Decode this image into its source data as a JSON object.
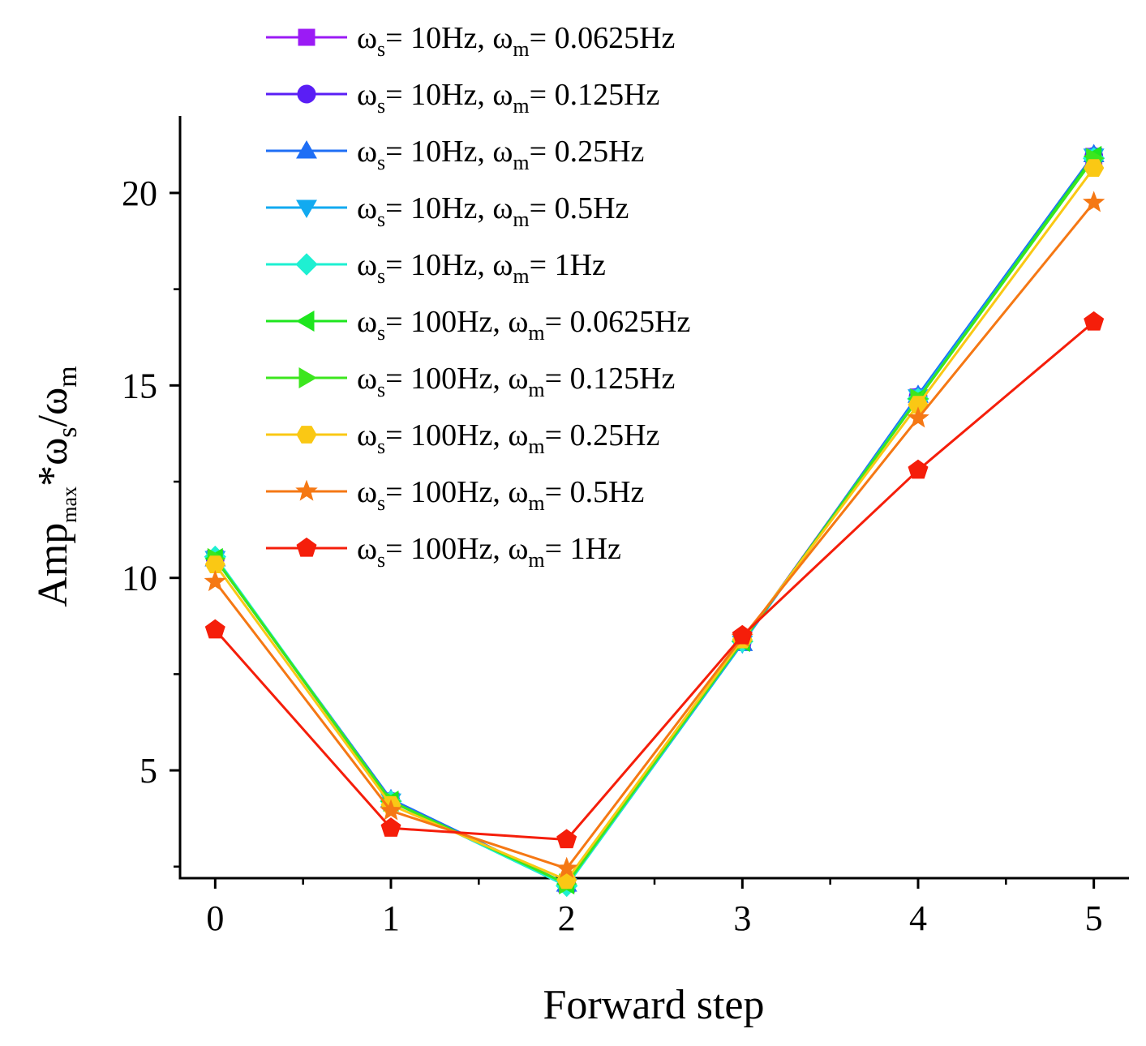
{
  "chart_data": {
    "type": "line",
    "xlabel": "Forward step",
    "ylabel": {
      "base": "Amp",
      "sub1": "max",
      "mid": "*ω",
      "sub2": "s",
      "slash": "/ω",
      "sub3": "m"
    },
    "xlim": [
      -0.2,
      5.2
    ],
    "ylim": [
      2.2,
      22.0
    ],
    "x": [
      0,
      1,
      2,
      3,
      4,
      5
    ],
    "xticks": [
      0,
      1,
      2,
      3,
      4,
      5
    ],
    "yticks": [
      5,
      10,
      15,
      20
    ],
    "grid": false,
    "legend_position": "top-left",
    "series": [
      {
        "ws": "10Hz",
        "wm": "0.0625Hz",
        "color": "#9b1bf5",
        "marker": "square",
        "values": [
          10.5,
          4.2,
          2.05,
          8.35,
          14.7,
          20.95
        ]
      },
      {
        "ws": "10Hz",
        "wm": "0.125Hz",
        "color": "#5a1ef5",
        "marker": "circle",
        "values": [
          10.5,
          4.2,
          2.05,
          8.35,
          14.7,
          20.95
        ]
      },
      {
        "ws": "10Hz",
        "wm": "0.25Hz",
        "color": "#1e6ef5",
        "marker": "triangle-up",
        "values": [
          10.5,
          4.25,
          2.05,
          8.3,
          14.75,
          21.0
        ]
      },
      {
        "ws": "10Hz",
        "wm": "0.5Hz",
        "color": "#12aaf0",
        "marker": "triangle-down",
        "values": [
          10.5,
          4.2,
          2.0,
          8.3,
          14.7,
          20.95
        ]
      },
      {
        "ws": "10Hz",
        "wm": "1Hz",
        "color": "#1ef0d2",
        "marker": "diamond",
        "values": [
          10.55,
          4.2,
          2.0,
          8.35,
          14.65,
          20.9
        ]
      },
      {
        "ws": "100Hz",
        "wm": "0.0625Hz",
        "color": "#1ee61e",
        "marker": "triangle-left",
        "values": [
          10.5,
          4.2,
          2.05,
          8.35,
          14.65,
          20.95
        ]
      },
      {
        "ws": "100Hz",
        "wm": "0.125Hz",
        "color": "#3ce61e",
        "marker": "triangle-right",
        "values": [
          10.5,
          4.2,
          2.05,
          8.35,
          14.65,
          20.9
        ]
      },
      {
        "ws": "100Hz",
        "wm": "0.25Hz",
        "color": "#fac814",
        "marker": "hexagon",
        "values": [
          10.35,
          4.1,
          2.15,
          8.4,
          14.5,
          20.65
        ]
      },
      {
        "ws": "100Hz",
        "wm": "0.5Hz",
        "color": "#f57814",
        "marker": "star",
        "values": [
          9.9,
          3.95,
          2.45,
          8.45,
          14.15,
          19.75
        ]
      },
      {
        "ws": "100Hz",
        "wm": "1Hz",
        "color": "#f51e0a",
        "marker": "pentagon",
        "values": [
          8.65,
          3.5,
          3.2,
          8.5,
          12.8,
          16.65
        ]
      }
    ]
  }
}
